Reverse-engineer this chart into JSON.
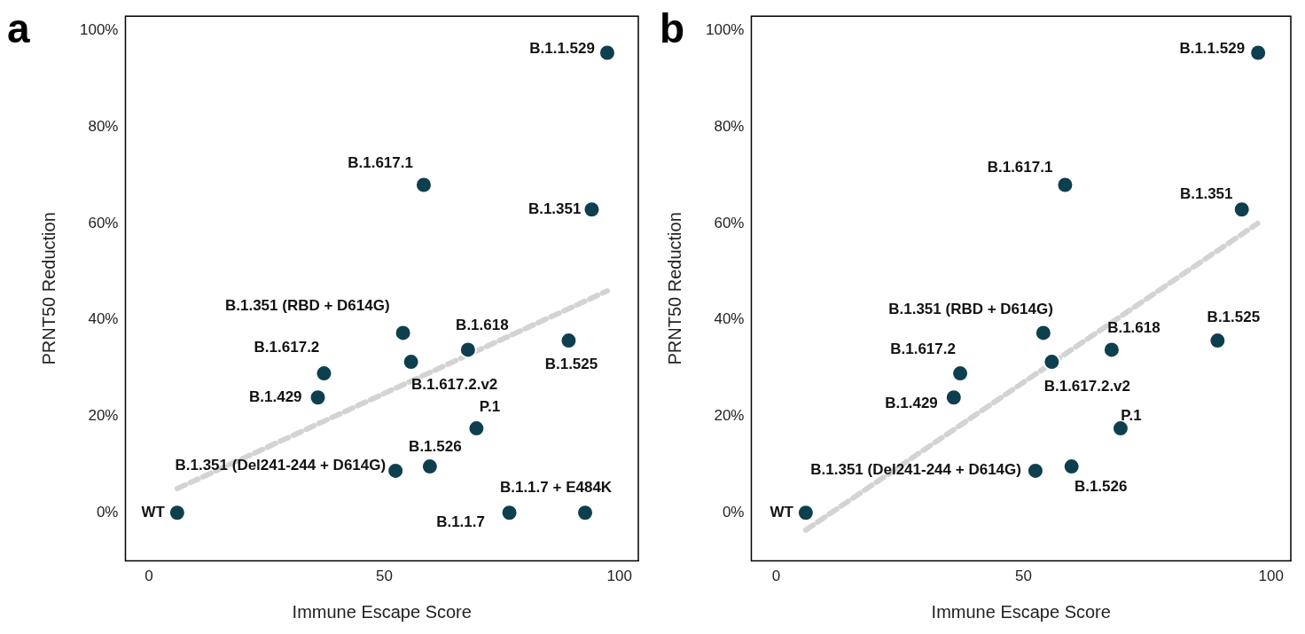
{
  "chart_data": [
    {
      "type": "scatter",
      "title": "a",
      "xlabel": "Immune Escape Score",
      "ylabel": "PRNT50 Reduction",
      "xlim": [
        -5,
        104
      ],
      "ylim": [
        -10,
        103
      ],
      "xticks": [
        0,
        50,
        100
      ],
      "yticks": [
        {
          "value": 0,
          "label": "0%"
        },
        {
          "value": 20,
          "label": "20%"
        },
        {
          "value": 40,
          "label": "40%"
        },
        {
          "value": 60,
          "label": "60%"
        },
        {
          "value": 80,
          "label": "80%"
        },
        {
          "value": 100,
          "label": "100%"
        }
      ],
      "grid": false,
      "legend": false,
      "marker": "circle",
      "series": [
        {
          "color": "#0d3f4f",
          "x": [
            6,
            97.4,
            58.4,
            94.1,
            54,
            67.8,
            89.2,
            37.2,
            55.7,
            35.9,
            69.6,
            59.7,
            52.4,
            76.6,
            92.7
          ],
          "values": [
            0,
            95.4,
            68,
            62.9,
            37.3,
            33.8,
            35.7,
            28.9,
            31.3,
            23.9,
            17.5,
            9.6,
            8.7,
            0,
            0
          ]
        },
        {
          "type": "line",
          "color": "#d3d3d3",
          "line_style": "dashed",
          "marker": "none",
          "x": [
            6,
            97.4
          ],
          "values": [
            5,
            46
          ]
        }
      ],
      "annotations": [
        {
          "text": "WT",
          "x": 6,
          "y": 0
        },
        {
          "text": "B.1.1.529",
          "x": 97.4,
          "y": 95.4
        },
        {
          "text": "B.1.617.1",
          "x": 58.4,
          "y": 68
        },
        {
          "text": "B.1.351",
          "x": 94.1,
          "y": 62.9
        },
        {
          "text": "B.1.351 (RBD + D614G)",
          "x": 54,
          "y": 37.3
        },
        {
          "text": "B.1.618",
          "x": 67.8,
          "y": 33.8
        },
        {
          "text": "B.1.525",
          "x": 89.2,
          "y": 35.7
        },
        {
          "text": "B.1.617.2",
          "x": 37.2,
          "y": 28.9
        },
        {
          "text": "B.1.617.2.v2",
          "x": 55.7,
          "y": 31.3
        },
        {
          "text": "B.1.429",
          "x": 35.9,
          "y": 23.9
        },
        {
          "text": "P.1",
          "x": 69.6,
          "y": 17.5
        },
        {
          "text": "B.1.526",
          "x": 59.7,
          "y": 9.6
        },
        {
          "text": "B.1.351 (Del241-244 + D614G)",
          "x": 52.4,
          "y": 8.7
        },
        {
          "text": "B.1.1.7",
          "x": 76.6,
          "y": 0
        },
        {
          "text": "B.1.1.7 + E484K",
          "x": 92.7,
          "y": 0
        }
      ]
    },
    {
      "type": "scatter",
      "title": "b",
      "xlabel": "Immune Escape Score",
      "ylabel": "PRNT50 Reduction",
      "xlim": [
        -5,
        104
      ],
      "ylim": [
        -10,
        103
      ],
      "xticks": [
        0,
        50,
        100
      ],
      "yticks": [
        {
          "value": 0,
          "label": "0%"
        },
        {
          "value": 20,
          "label": "20%"
        },
        {
          "value": 40,
          "label": "40%"
        },
        {
          "value": 60,
          "label": "60%"
        },
        {
          "value": 80,
          "label": "80%"
        },
        {
          "value": 100,
          "label": "100%"
        }
      ],
      "grid": false,
      "legend": false,
      "marker": "circle",
      "series": [
        {
          "color": "#0d3f4f",
          "x": [
            6,
            97.4,
            58.4,
            94.1,
            54,
            67.8,
            89.2,
            37.2,
            55.7,
            35.9,
            69.6,
            59.7,
            52.4
          ],
          "values": [
            0,
            95.4,
            68,
            62.9,
            37.3,
            33.8,
            35.7,
            28.9,
            31.3,
            23.9,
            17.5,
            9.6,
            8.7
          ]
        },
        {
          "type": "line",
          "color": "#d3d3d3",
          "line_style": "dashed",
          "marker": "none",
          "x": [
            6,
            97.3
          ],
          "values": [
            -3.6,
            60
          ]
        }
      ],
      "annotations": [
        {
          "text": "WT",
          "x": 6,
          "y": 0
        },
        {
          "text": "B.1.1.529",
          "x": 97.4,
          "y": 95.4
        },
        {
          "text": "B.1.617.1",
          "x": 58.4,
          "y": 68
        },
        {
          "text": "B.1.351",
          "x": 94.1,
          "y": 62.9
        },
        {
          "text": "B.1.351 (RBD + D614G)",
          "x": 54,
          "y": 37.3
        },
        {
          "text": "B.1.618",
          "x": 67.8,
          "y": 33.8
        },
        {
          "text": "B.1.525",
          "x": 89.2,
          "y": 35.7
        },
        {
          "text": "B.1.617.2",
          "x": 37.2,
          "y": 28.9
        },
        {
          "text": "B.1.617.2.v2",
          "x": 55.7,
          "y": 31.3
        },
        {
          "text": "B.1.429",
          "x": 35.9,
          "y": 23.9
        },
        {
          "text": "P.1",
          "x": 69.6,
          "y": 17.5
        },
        {
          "text": "B.1.526",
          "x": 59.7,
          "y": 9.6
        },
        {
          "text": "B.1.351 (Del241-244 + D614G)",
          "x": 52.4,
          "y": 8.7
        }
      ]
    }
  ]
}
